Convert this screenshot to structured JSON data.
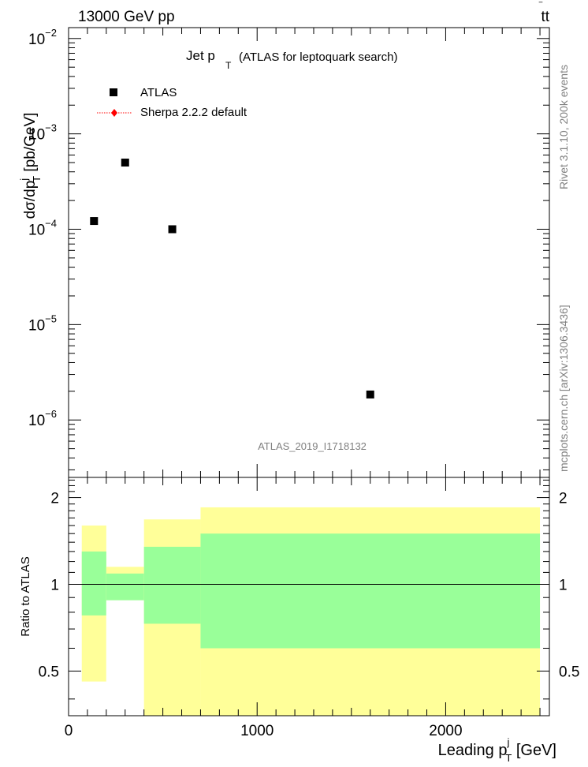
{
  "header": {
    "energy": "13000 GeV pp",
    "process_main": "tt",
    "process_bar": "t"
  },
  "title": {
    "main": "Jet p",
    "main_sub": "T",
    "detail": "(ATLAS for leptoquark search)"
  },
  "legend": {
    "placement": "top-left",
    "items": [
      {
        "label": "ATLAS",
        "marker": "square",
        "color": "#000000"
      },
      {
        "label": "Sherpa 2.2.2 default",
        "marker": "diamond-dotted",
        "color": "#ff0000"
      }
    ]
  },
  "side_labels": {
    "rivet": "Rivet 3.1.10,  200k events",
    "mcplots": "mcplots.cern.ch [arXiv:1306.3436]"
  },
  "watermark": "ATLAS_2019_I1718132",
  "axes": {
    "main_ylabel": {
      "pre": "dσ/dp",
      "sup": "j",
      "sub": "T",
      "post": " [pb/GeV]"
    },
    "ratio_ylabel": "Ratio to ATLAS",
    "xlabel": {
      "pre": "Leading p",
      "sup": "j",
      "sub": "T",
      "post": " [GeV]"
    },
    "x_ticks": [
      "0",
      "1000",
      "2000"
    ],
    "ratio_ticks": [
      "0.5",
      "1",
      "2"
    ],
    "main_ticks": [
      {
        "base": "10",
        "exp": "−2"
      },
      {
        "base": "10",
        "exp": "−3"
      },
      {
        "base": "10",
        "exp": "−4"
      },
      {
        "base": "10",
        "exp": "−5"
      },
      {
        "base": "10",
        "exp": "−6"
      }
    ]
  },
  "colors": {
    "band_inner": "#99ff99",
    "band_outer": "#ffff99",
    "data": "#000000",
    "mc": "#ff0000",
    "watermark": "#808080"
  },
  "chart_data": [
    {
      "type": "scatter",
      "title": "Jet pT (ATLAS for leptoquark search)",
      "xlabel": "Leading pT^j [GeV]",
      "ylabel": "dσ/dpT^j [pb/GeV]",
      "xlim": [
        0,
        2550
      ],
      "ylim": [
        2.5e-07,
        0.013
      ],
      "yscale": "log",
      "series": [
        {
          "name": "ATLAS",
          "x": [
            135,
            300,
            550,
            1600
          ],
          "y": [
            0.000122,
            0.0005,
            0.0001,
            1.85e-06
          ]
        }
      ]
    },
    {
      "type": "area",
      "title": "",
      "xlabel": "Leading pT^j [GeV]",
      "ylabel": "Ratio to ATLAS",
      "xlim": [
        0,
        2550
      ],
      "ylim": [
        0.35,
        2.35
      ],
      "yscale": "log",
      "reference_line": 1,
      "bins": [
        {
          "x_low": 70,
          "x_high": 200,
          "inner": [
            0.78,
            1.3
          ],
          "outer": [
            0.46,
            1.6
          ]
        },
        {
          "x_low": 200,
          "x_high": 400,
          "inner": [
            0.88,
            1.09
          ],
          "outer": [
            0.88,
            1.15
          ]
        },
        {
          "x_low": 400,
          "x_high": 700,
          "inner": [
            0.73,
            1.35
          ],
          "outer": [
            0.35,
            1.68
          ]
        },
        {
          "x_low": 700,
          "x_high": 2500,
          "inner": [
            0.6,
            1.5
          ],
          "outer": [
            0.35,
            1.85
          ]
        }
      ]
    }
  ]
}
